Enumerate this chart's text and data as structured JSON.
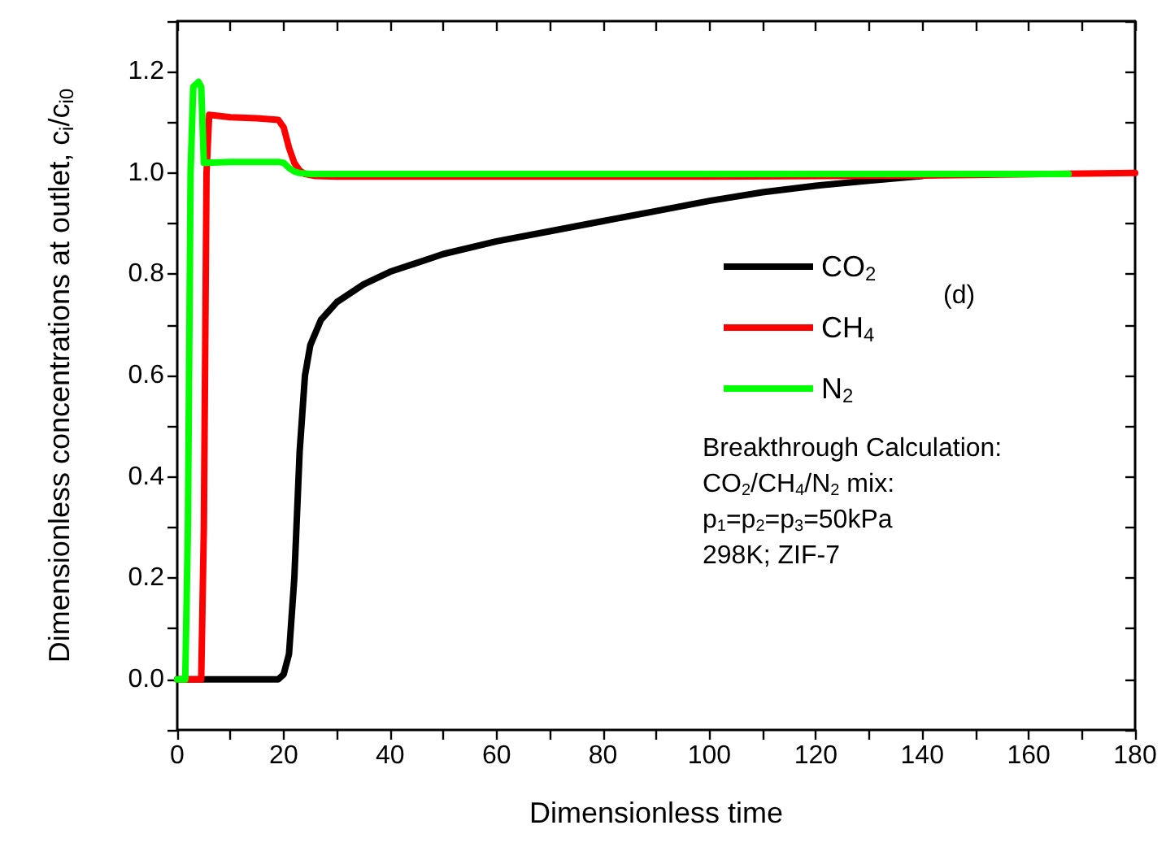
{
  "chart_data": {
    "type": "line",
    "xlabel": "Dimensionless time",
    "ylabel": "Dimensionless concentrations at outlet, c$_{i}$/c$_{i0}$",
    "xlim": [
      0,
      180
    ],
    "xticks": [
      0,
      {
        "value": 10,
        "label": null
      },
      20,
      {
        "value": 30,
        "label": null
      },
      40,
      {
        "value": 50,
        "label": null
      },
      60,
      {
        "value": 70,
        "label": null
      },
      80,
      {
        "value": 90,
        "label": null
      },
      100,
      {
        "value": 110,
        "label": null
      },
      120,
      {
        "value": 130,
        "label": null
      },
      140,
      {
        "value": 150,
        "label": null
      },
      160,
      {
        "value": 170,
        "label": null
      },
      180
    ],
    "ylim": [
      -0.1,
      1.3
    ],
    "yticks": [
      {
        "value": -0.1,
        "label": null
      },
      {
        "value": 0,
        "label": "0.0"
      },
      {
        "value": 0.1,
        "label": null
      },
      {
        "value": 0.2,
        "label": "0.2"
      },
      {
        "value": 0.3,
        "label": null
      },
      {
        "value": 0.4,
        "label": "0.4"
      },
      {
        "value": 0.5,
        "label": null
      },
      {
        "value": 0.6,
        "label": "0.6"
      },
      {
        "value": 0.7,
        "label": null
      },
      {
        "value": 0.8,
        "label": "0.8"
      },
      {
        "value": 0.9,
        "label": null
      },
      {
        "value": 1.0,
        "label": "1.0"
      },
      {
        "value": 1.1,
        "label": null
      },
      {
        "value": 1.2,
        "label": "1.2"
      },
      {
        "value": 1.3,
        "label": null
      }
    ],
    "series": [
      {
        "name": "CO$_{2}$",
        "color": "#000000",
        "x": [
          0,
          10,
          19,
          20,
          21,
          22,
          23,
          24,
          25,
          27,
          30,
          35,
          40,
          50,
          60,
          70,
          80,
          90,
          100,
          110,
          120,
          130,
          140
        ],
        "values": [
          0,
          0,
          0,
          0.01,
          0.05,
          0.2,
          0.45,
          0.6,
          0.66,
          0.71,
          0.745,
          0.78,
          0.805,
          0.84,
          0.865,
          0.885,
          0.905,
          0.925,
          0.945,
          0.962,
          0.975,
          0.985,
          0.994
        ]
      },
      {
        "name": "CH$_{4}$",
        "color": "#ff0000",
        "x": [
          0,
          4.5,
          5,
          5.5,
          6,
          10,
          15,
          19,
          20,
          21,
          22,
          23,
          24,
          26,
          30,
          60,
          100,
          140,
          180
        ],
        "values": [
          0,
          0,
          0.3,
          1.0,
          1.115,
          1.11,
          1.108,
          1.105,
          1.09,
          1.05,
          1.02,
          1.005,
          0.998,
          0.994,
          0.993,
          0.993,
          0.993,
          0.995,
          1.0
        ]
      },
      {
        "name": "N$_{2}$",
        "color": "#00ff00",
        "x": [
          0,
          1.5,
          2,
          2.5,
          3,
          4,
          4.5,
          5,
          10,
          19,
          20,
          21,
          22,
          23,
          25,
          30,
          60,
          100,
          140,
          167.5
        ],
        "values": [
          0,
          0,
          0.3,
          1.0,
          1.17,
          1.18,
          1.17,
          1.02,
          1.022,
          1.022,
          1.02,
          1.01,
          1.003,
          1.0,
          0.998,
          0.998,
          0.998,
          0.998,
          0.998,
          0.998
        ]
      }
    ],
    "legend": "right",
    "grid": false,
    "marker": "none",
    "line_style": "solid",
    "annotations": [
      "(d)",
      "Breakthrough Calculation:",
      "CO$_{2}$/CH$_{4}$/N$_{2}$ mix:",
      "p$_{1}$=p$_{2}$=p$_{3}$=50kPa",
      "298K; ZIF-7"
    ]
  }
}
